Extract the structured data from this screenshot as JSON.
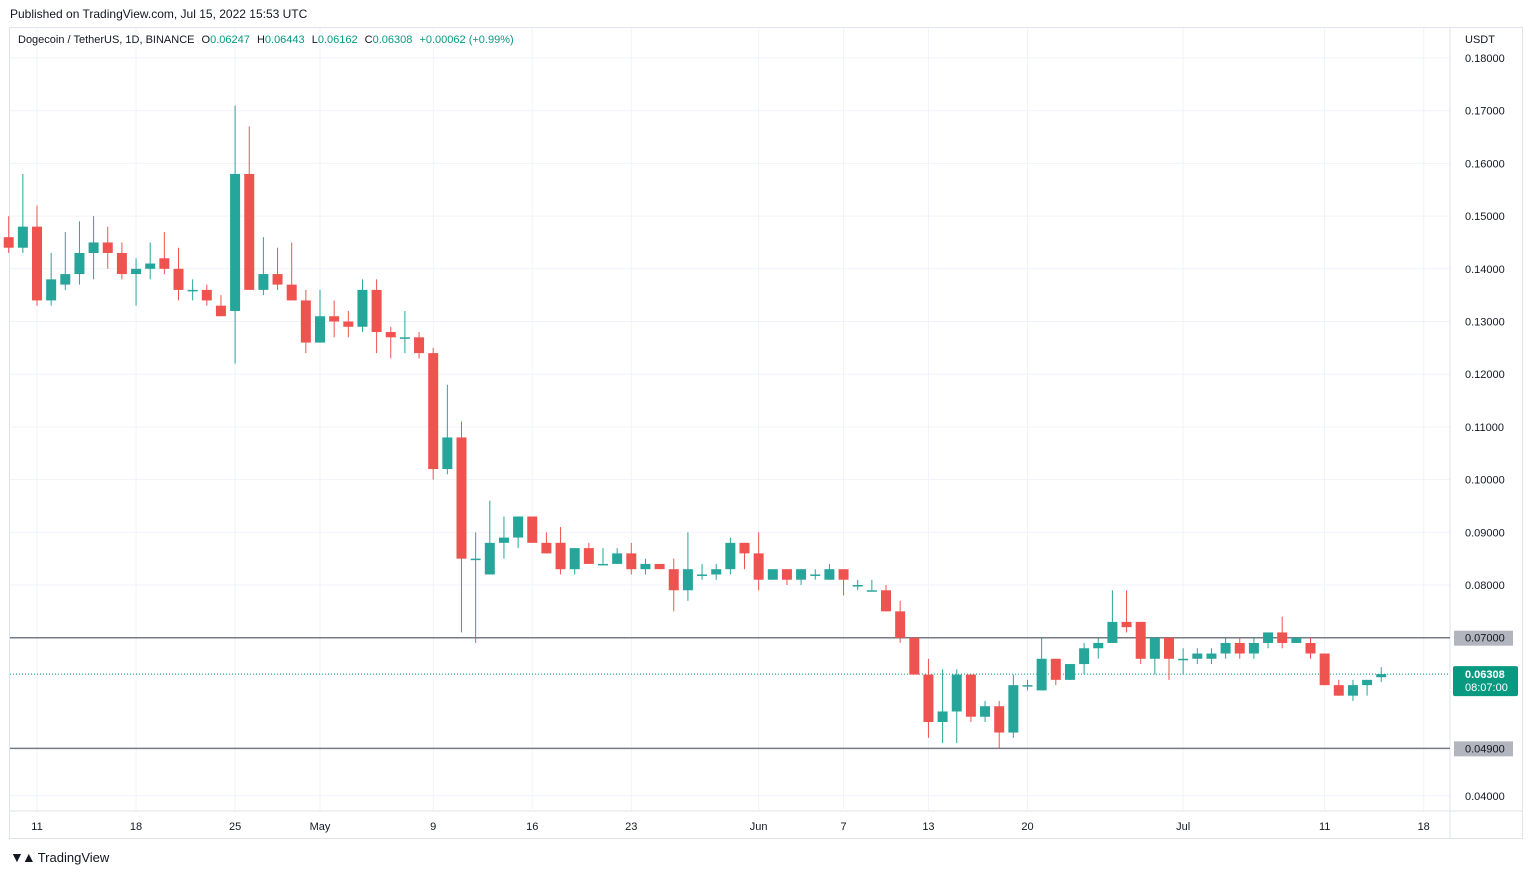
{
  "header": {
    "published": "Published on TradingView.com, Jul 15, 2022 15:53 UTC"
  },
  "legend": {
    "symbol": "Dogecoin / TetherUS, 1D, BINANCE",
    "open_label": "O",
    "open": "0.06247",
    "high_label": "H",
    "high": "0.06443",
    "low_label": "L",
    "low": "0.06162",
    "close_label": "C",
    "close": "0.06308",
    "change": "+0.00062 (+0.99%)"
  },
  "currency": "USDT",
  "footer": {
    "brand": "TradingView"
  },
  "colors": {
    "up": "#26a69a",
    "down": "#ef5350",
    "level_line": "#787b86",
    "last_price": "#089981"
  },
  "chart_data": {
    "type": "candlestick",
    "ylim": [
      0.0375,
      0.1825
    ],
    "y_ticks": [
      "0.18000",
      "0.17000",
      "0.16000",
      "0.15000",
      "0.14000",
      "0.13000",
      "0.12000",
      "0.11000",
      "0.10000",
      "0.09000",
      "0.08000",
      "0.04000"
    ],
    "x_ticks": [
      {
        "label": "11",
        "day": 0
      },
      {
        "label": "18",
        "day": 7
      },
      {
        "label": "25",
        "day": 14
      },
      {
        "label": "May",
        "day": 20
      },
      {
        "label": "9",
        "day": 28
      },
      {
        "label": "16",
        "day": 35
      },
      {
        "label": "23",
        "day": 42
      },
      {
        "label": "Jun",
        "day": 51
      },
      {
        "label": "7",
        "day": 57
      },
      {
        "label": "13",
        "day": 63
      },
      {
        "label": "20",
        "day": 70
      },
      {
        "label": "Jul",
        "day": 81
      },
      {
        "label": "11",
        "day": 91
      },
      {
        "label": "18",
        "day": 98
      }
    ],
    "horizontal_levels": [
      {
        "value": 0.07,
        "label": "0.07000"
      },
      {
        "value": 0.049,
        "label": "0.04900"
      }
    ],
    "last_price": {
      "value": 0.06308,
      "label": "0.06308",
      "countdown": "08:07:00"
    },
    "candles": [
      [
        -2,
        0.146,
        0.15,
        0.143,
        0.144
      ],
      [
        -1,
        0.144,
        0.158,
        0.143,
        0.148
      ],
      [
        0,
        0.148,
        0.152,
        0.133,
        0.134
      ],
      [
        1,
        0.134,
        0.143,
        0.133,
        0.138
      ],
      [
        2,
        0.137,
        0.147,
        0.136,
        0.139
      ],
      [
        3,
        0.139,
        0.149,
        0.137,
        0.143
      ],
      [
        4,
        0.143,
        0.15,
        0.138,
        0.145
      ],
      [
        5,
        0.145,
        0.148,
        0.14,
        0.143
      ],
      [
        6,
        0.143,
        0.145,
        0.138,
        0.139
      ],
      [
        7,
        0.139,
        0.142,
        0.133,
        0.14
      ],
      [
        8,
        0.14,
        0.145,
        0.138,
        0.141
      ],
      [
        9,
        0.142,
        0.147,
        0.139,
        0.14
      ],
      [
        10,
        0.14,
        0.144,
        0.134,
        0.136
      ],
      [
        11,
        0.136,
        0.138,
        0.134,
        0.136
      ],
      [
        12,
        0.136,
        0.137,
        0.133,
        0.134
      ],
      [
        13,
        0.133,
        0.135,
        0.131,
        0.131
      ],
      [
        14,
        0.132,
        0.171,
        0.122,
        0.158
      ],
      [
        15,
        0.158,
        0.167,
        0.136,
        0.136
      ],
      [
        16,
        0.136,
        0.146,
        0.135,
        0.139
      ],
      [
        17,
        0.139,
        0.144,
        0.136,
        0.137
      ],
      [
        18,
        0.137,
        0.145,
        0.135,
        0.134
      ],
      [
        19,
        0.134,
        0.136,
        0.124,
        0.126
      ],
      [
        20,
        0.126,
        0.136,
        0.126,
        0.131
      ],
      [
        21,
        0.131,
        0.134,
        0.127,
        0.13
      ],
      [
        22,
        0.13,
        0.132,
        0.127,
        0.129
      ],
      [
        23,
        0.129,
        0.138,
        0.128,
        0.136
      ],
      [
        24,
        0.136,
        0.138,
        0.124,
        0.128
      ],
      [
        25,
        0.128,
        0.129,
        0.123,
        0.127
      ],
      [
        26,
        0.127,
        0.132,
        0.124,
        0.127
      ],
      [
        27,
        0.127,
        0.128,
        0.123,
        0.124
      ],
      [
        28,
        0.124,
        0.125,
        0.1,
        0.102
      ],
      [
        29,
        0.102,
        0.118,
        0.101,
        0.108
      ],
      [
        30,
        0.108,
        0.111,
        0.071,
        0.085
      ],
      [
        31,
        0.085,
        0.09,
        0.069,
        0.085
      ],
      [
        32,
        0.082,
        0.096,
        0.082,
        0.088
      ],
      [
        33,
        0.088,
        0.093,
        0.085,
        0.089
      ],
      [
        34,
        0.089,
        0.093,
        0.087,
        0.093
      ],
      [
        35,
        0.093,
        0.093,
        0.088,
        0.088
      ],
      [
        36,
        0.088,
        0.09,
        0.086,
        0.086
      ],
      [
        37,
        0.088,
        0.091,
        0.082,
        0.083
      ],
      [
        38,
        0.083,
        0.087,
        0.082,
        0.087
      ],
      [
        39,
        0.087,
        0.088,
        0.084,
        0.084
      ],
      [
        40,
        0.084,
        0.087,
        0.084,
        0.084
      ],
      [
        41,
        0.084,
        0.087,
        0.084,
        0.086
      ],
      [
        42,
        0.086,
        0.088,
        0.082,
        0.083
      ],
      [
        43,
        0.083,
        0.085,
        0.082,
        0.084
      ],
      [
        44,
        0.084,
        0.084,
        0.083,
        0.083
      ],
      [
        45,
        0.083,
        0.085,
        0.075,
        0.079
      ],
      [
        46,
        0.079,
        0.09,
        0.077,
        0.083
      ],
      [
        47,
        0.082,
        0.084,
        0.081,
        0.082
      ],
      [
        48,
        0.082,
        0.084,
        0.081,
        0.083
      ],
      [
        49,
        0.083,
        0.089,
        0.082,
        0.088
      ],
      [
        50,
        0.088,
        0.088,
        0.083,
        0.086
      ],
      [
        51,
        0.086,
        0.09,
        0.079,
        0.081
      ],
      [
        52,
        0.081,
        0.083,
        0.081,
        0.083
      ],
      [
        53,
        0.083,
        0.083,
        0.08,
        0.081
      ],
      [
        54,
        0.081,
        0.083,
        0.08,
        0.083
      ],
      [
        55,
        0.082,
        0.083,
        0.081,
        0.082
      ],
      [
        56,
        0.081,
        0.084,
        0.081,
        0.083
      ],
      [
        57,
        0.083,
        0.083,
        0.078,
        0.081
      ],
      [
        58,
        0.08,
        0.081,
        0.079,
        0.08
      ],
      [
        59,
        0.079,
        0.081,
        0.079,
        0.079
      ],
      [
        60,
        0.079,
        0.08,
        0.075,
        0.075
      ],
      [
        61,
        0.075,
        0.077,
        0.069,
        0.07
      ],
      [
        62,
        0.07,
        0.07,
        0.063,
        0.063
      ],
      [
        63,
        0.063,
        0.066,
        0.051,
        0.054
      ],
      [
        64,
        0.054,
        0.064,
        0.05,
        0.056
      ],
      [
        65,
        0.056,
        0.064,
        0.05,
        0.063
      ],
      [
        66,
        0.063,
        0.063,
        0.054,
        0.055
      ],
      [
        67,
        0.055,
        0.058,
        0.054,
        0.057
      ],
      [
        68,
        0.057,
        0.058,
        0.049,
        0.052
      ],
      [
        69,
        0.052,
        0.063,
        0.051,
        0.061
      ],
      [
        70,
        0.061,
        0.062,
        0.06,
        0.061
      ],
      [
        71,
        0.06,
        0.07,
        0.06,
        0.066
      ],
      [
        72,
        0.066,
        0.066,
        0.061,
        0.062
      ],
      [
        73,
        0.062,
        0.065,
        0.062,
        0.065
      ],
      [
        74,
        0.065,
        0.069,
        0.063,
        0.068
      ],
      [
        75,
        0.068,
        0.07,
        0.066,
        0.069
      ],
      [
        76,
        0.069,
        0.079,
        0.069,
        0.073
      ],
      [
        77,
        0.073,
        0.079,
        0.071,
        0.072
      ],
      [
        78,
        0.073,
        0.073,
        0.065,
        0.066
      ],
      [
        79,
        0.066,
        0.07,
        0.063,
        0.07
      ],
      [
        80,
        0.07,
        0.07,
        0.062,
        0.066
      ],
      [
        81,
        0.066,
        0.068,
        0.063,
        0.066
      ],
      [
        82,
        0.066,
        0.068,
        0.065,
        0.067
      ],
      [
        83,
        0.066,
        0.068,
        0.065,
        0.067
      ],
      [
        84,
        0.067,
        0.07,
        0.066,
        0.069
      ],
      [
        85,
        0.069,
        0.07,
        0.066,
        0.067
      ],
      [
        86,
        0.067,
        0.07,
        0.066,
        0.069
      ],
      [
        87,
        0.069,
        0.071,
        0.068,
        0.071
      ],
      [
        88,
        0.071,
        0.074,
        0.068,
        0.069
      ],
      [
        89,
        0.069,
        0.07,
        0.069,
        0.07
      ],
      [
        90,
        0.069,
        0.07,
        0.066,
        0.067
      ],
      [
        91,
        0.067,
        0.067,
        0.061,
        0.061
      ],
      [
        92,
        0.061,
        0.062,
        0.059,
        0.059
      ],
      [
        93,
        0.059,
        0.062,
        0.058,
        0.061
      ],
      [
        94,
        0.061,
        0.062,
        0.059,
        0.062
      ],
      [
        95,
        0.0625,
        0.0644,
        0.0616,
        0.0631
      ]
    ]
  }
}
